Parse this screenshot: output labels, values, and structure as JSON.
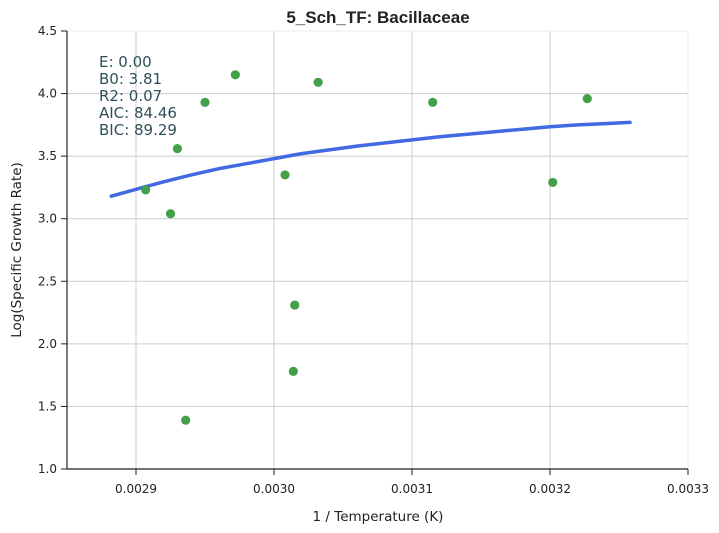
{
  "chart_data": {
    "type": "scatter",
    "title": "5_Sch_TF: Bacillaceae",
    "xlabel": "1 / Temperature (K)",
    "ylabel": "Log(Specific Growth Rate)",
    "xlim": [
      0.00285,
      0.0033
    ],
    "ylim": [
      1.0,
      4.5
    ],
    "xticks": [
      0.0029,
      0.003,
      0.0031,
      0.0032,
      0.0033
    ],
    "xtick_labels": [
      "0.0029",
      "0.0030",
      "0.0031",
      "0.0032",
      "0.0033"
    ],
    "yticks": [
      1.0,
      1.5,
      2.0,
      2.5,
      3.0,
      3.5,
      4.0,
      4.5
    ],
    "ytick_labels": [
      "1.0",
      "1.5",
      "2.0",
      "2.5",
      "3.0",
      "3.5",
      "4.0",
      "4.5"
    ],
    "grid": true,
    "stats": [
      "E:  0.00",
      "B0:  3.81",
      "R2:  0.07",
      "AIC: 84.46",
      "BIC: 89.29"
    ],
    "points": {
      "color": "#44a048",
      "x": [
        0.002907,
        0.002925,
        0.00293,
        0.002936,
        0.00295,
        0.002972,
        0.003008,
        0.003014,
        0.003015,
        0.003032,
        0.003115,
        0.003202,
        0.003227
      ],
      "y": [
        3.23,
        3.04,
        3.56,
        1.39,
        3.93,
        4.15,
        3.35,
        1.78,
        2.31,
        4.09,
        3.93,
        3.29,
        3.96
      ]
    },
    "fit_line": {
      "color": "#4169e1",
      "x": [
        0.002882,
        0.0029,
        0.00292,
        0.00294,
        0.00296,
        0.00298,
        0.003,
        0.00302,
        0.00304,
        0.00306,
        0.00308,
        0.0031,
        0.00312,
        0.00314,
        0.00316,
        0.00318,
        0.0032,
        0.00322,
        0.00324,
        0.003258
      ],
      "y": [
        3.18,
        3.235,
        3.295,
        3.35,
        3.4,
        3.44,
        3.48,
        3.52,
        3.55,
        3.58,
        3.605,
        3.63,
        3.655,
        3.675,
        3.695,
        3.715,
        3.735,
        3.75,
        3.76,
        3.77
      ]
    }
  }
}
